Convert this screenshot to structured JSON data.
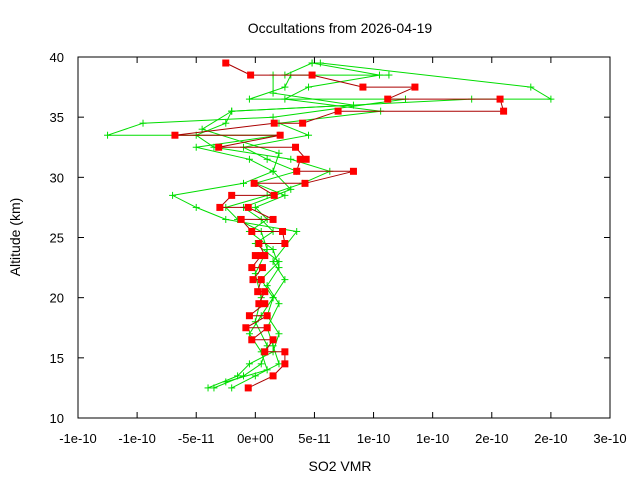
{
  "chart_data": {
    "type": "line",
    "title": "Occultations from 2026-04-19",
    "xlabel": "SO2 VMR",
    "ylabel": "Altitude (km)",
    "xlim": [
      -1.5e-10,
      3e-10
    ],
    "ylim": [
      10,
      40
    ],
    "grid": false,
    "x_ticks": [
      -1.5e-10,
      -1e-10,
      -5e-11,
      0,
      5e-11,
      1e-10,
      1.5e-10,
      2e-10,
      2.5e-10,
      3e-10
    ],
    "x_tick_labels": [
      "-1e-10",
      "-1e-10",
      "-5e-11",
      "0e+00",
      "5e-11",
      "1e-10",
      "1e-10",
      "2e-10",
      "2e-10",
      "3e-10"
    ],
    "y_ticks": [
      10,
      15,
      20,
      25,
      30,
      35,
      40
    ],
    "y_tick_labels": [
      "10",
      "15",
      "20",
      "25",
      "30",
      "35",
      "40"
    ],
    "colors": {
      "mean": "#ff0000",
      "mean_line": "#aa0000",
      "individual": "#00dd00"
    },
    "series": [
      {
        "role": "mean",
        "marker": "square",
        "points": [
          [
            -6e-12,
            12.5
          ],
          [
            1.5e-11,
            13.5
          ],
          [
            2.5e-11,
            14.5
          ],
          [
            2.5e-11,
            15.5
          ],
          [
            8e-12,
            15.5
          ],
          [
            1.5e-11,
            16.5
          ],
          [
            -3e-12,
            16.5
          ],
          [
            1e-11,
            17.5
          ],
          [
            -8e-12,
            17.5
          ],
          [
            1e-11,
            18.5
          ],
          [
            -5e-12,
            18.5
          ],
          [
            8e-12,
            19.5
          ],
          [
            3e-12,
            19.5
          ],
          [
            8e-12,
            20.5
          ],
          [
            2e-12,
            20.5
          ],
          [
            5e-12,
            21.5
          ],
          [
            -2e-12,
            21.5
          ],
          [
            6e-12,
            22.5
          ],
          [
            -3e-12,
            22.5
          ],
          [
            5e-12,
            23.5
          ],
          [
            0.0,
            23.5
          ],
          [
            8e-12,
            23.5
          ],
          [
            3e-12,
            24.5
          ],
          [
            2.5e-11,
            24.5
          ],
          [
            2.3e-11,
            25.5
          ],
          [
            -3e-12,
            25.5
          ],
          [
            -1.2e-11,
            26.5
          ],
          [
            1.5e-11,
            26.5
          ],
          [
            -6e-12,
            27.5
          ],
          [
            -3e-11,
            27.5
          ],
          [
            -2e-11,
            28.5
          ],
          [
            1.6e-11,
            28.5
          ],
          [
            -1e-12,
            29.5
          ],
          [
            4.2e-11,
            29.5
          ],
          [
            8.3e-11,
            30.5
          ],
          [
            3.5e-11,
            30.5
          ],
          [
            3.8e-11,
            31.5
          ],
          [
            4.3e-11,
            31.5
          ],
          [
            3.4e-11,
            32.5
          ],
          [
            -3.1e-11,
            32.5
          ],
          [
            2.1e-11,
            33.5
          ],
          [
            -6.8e-11,
            33.5
          ],
          [
            1.6e-11,
            34.5
          ],
          [
            4e-11,
            34.5
          ],
          [
            7e-11,
            35.5
          ],
          [
            2.1e-10,
            35.5
          ],
          [
            2.07e-10,
            36.5
          ],
          [
            1.12e-10,
            36.5
          ],
          [
            1.35e-10,
            37.5
          ],
          [
            9.1e-11,
            37.5
          ],
          [
            4.8e-11,
            38.5
          ],
          [
            -4e-12,
            38.5
          ],
          [
            -2.5e-11,
            39.5
          ]
        ]
      },
      {
        "role": "individual",
        "marker": "plus",
        "points": [
          [
            -4e-11,
            12.5
          ],
          [
            -1.5e-11,
            13.5
          ],
          [
            -5e-12,
            14.5
          ],
          [
            1.5e-11,
            15.5
          ],
          [
            2e-11,
            17.0
          ],
          [
            1e-11,
            18.5
          ],
          [
            1.5e-11,
            20.0
          ],
          [
            2.5e-11,
            21.5
          ],
          [
            1.5e-11,
            23.0
          ],
          [
            3.5e-11,
            25.5
          ],
          [
            -2.5e-11,
            26.5
          ],
          [
            -5e-11,
            27.5
          ],
          [
            -7e-11,
            28.5
          ],
          [
            -1e-11,
            29.5
          ],
          [
            1.5e-11,
            30.5
          ],
          [
            -5e-12,
            31.5
          ],
          [
            -5e-11,
            32.5
          ],
          [
            2e-11,
            33.5
          ],
          [
            -1.25e-10,
            33.5
          ],
          [
            -9.5e-11,
            34.5
          ],
          [
            1.5e-11,
            35.0
          ],
          [
            1.27e-10,
            36.5
          ],
          [
            -5e-12,
            36.5
          ],
          [
            2.5e-11,
            37.5
          ],
          [
            3e-11,
            38.5
          ],
          [
            1.13e-10,
            38.5
          ]
        ]
      },
      {
        "role": "individual",
        "marker": "plus",
        "points": [
          [
            -3.5e-11,
            12.5
          ],
          [
            -1e-11,
            13.5
          ],
          [
            5e-12,
            14.5
          ],
          [
            1e-11,
            16.0
          ],
          [
            0.0,
            18.0
          ],
          [
            5e-12,
            20.0
          ],
          [
            0.0,
            22.0
          ],
          [
            1e-11,
            24.0
          ],
          [
            5e-12,
            25.5
          ],
          [
            -1.5e-11,
            26.5
          ],
          [
            -2.5e-11,
            27.5
          ],
          [
            1e-11,
            28.5
          ],
          [
            4e-11,
            29.5
          ],
          [
            6.3e-11,
            30.5
          ],
          [
            3e-11,
            31.5
          ],
          [
            -3.5e-11,
            32.5
          ],
          [
            -5e-11,
            33.5
          ],
          [
            -2.5e-11,
            34.5
          ],
          [
            -2e-11,
            35.5
          ],
          [
            1.83e-10,
            36.5
          ],
          [
            2.5e-10,
            36.5
          ],
          [
            2.33e-10,
            37.5
          ],
          [
            5.5e-11,
            39.5
          ],
          [
            4.8e-11,
            39.5
          ]
        ]
      },
      {
        "role": "individual",
        "marker": "plus",
        "points": [
          [
            -2e-11,
            12.5
          ],
          [
            0.0,
            13.5
          ],
          [
            2e-11,
            14.5
          ],
          [
            1.5e-11,
            16.0
          ],
          [
            1e-11,
            17.5
          ],
          [
            2e-11,
            19.5
          ],
          [
            1e-11,
            21.0
          ],
          [
            2e-11,
            22.5
          ],
          [
            1.5e-11,
            24.0
          ],
          [
            -5e-12,
            25.5
          ],
          [
            1e-11,
            26.5
          ],
          [
            0.0,
            27.5
          ],
          [
            2.5e-11,
            28.5
          ],
          [
            0.0,
            29.5
          ],
          [
            3.5e-11,
            30.5
          ],
          [
            1e-11,
            31.5
          ],
          [
            -1e-11,
            32.5
          ],
          [
            4.5e-11,
            33.5
          ],
          [
            2e-11,
            34.5
          ],
          [
            1.06e-10,
            35.5
          ],
          [
            2.5e-11,
            36.5
          ],
          [
            4.5e-11,
            37.5
          ],
          [
            1.05e-10,
            38.5
          ],
          [
            4.8e-11,
            39.5
          ],
          [
            2.5e-11,
            38.5
          ]
        ]
      },
      {
        "role": "individual",
        "marker": "plus",
        "points": [
          [
            -2.5e-11,
            13.0
          ],
          [
            1e-11,
            14.0
          ],
          [
            5e-12,
            15.5
          ],
          [
            -5e-12,
            17.0
          ],
          [
            5e-12,
            18.5
          ],
          [
            1.5e-11,
            20.0
          ],
          [
            5e-12,
            21.5
          ],
          [
            2e-11,
            23.0
          ],
          [
            0.0,
            24.5
          ],
          [
            1.5e-11,
            25.5
          ],
          [
            5e-12,
            26.5
          ],
          [
            -1e-11,
            27.5
          ],
          [
            3e-11,
            29.0
          ],
          [
            1.5e-11,
            30.5
          ],
          [
            2e-11,
            32.0
          ],
          [
            -4.5e-11,
            34.0
          ],
          [
            -2e-11,
            35.5
          ],
          [
            8.3e-11,
            36.0
          ],
          [
            1.5e-11,
            37.0
          ],
          [
            1.5e-11,
            38.5
          ]
        ]
      }
    ]
  }
}
